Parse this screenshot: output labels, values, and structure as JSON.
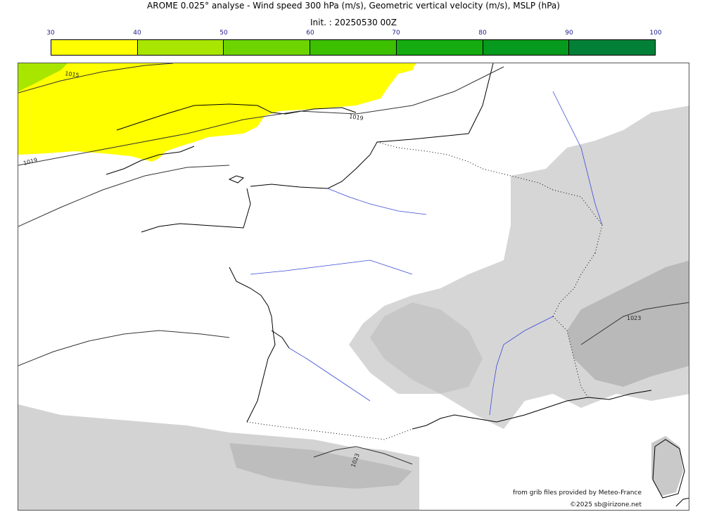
{
  "header": {
    "title": "AROME 0.025° analyse - Wind speed 300 hPa (m/s), Geometric vertical velocity (m/s), MSLP (hPa)",
    "init": "Init. : 20250530 00Z"
  },
  "colorbar": {
    "ticks": [
      "30",
      "40",
      "50",
      "60",
      "70",
      "80",
      "90",
      "100"
    ],
    "colors": [
      "#ffff00",
      "#a8e600",
      "#6dd400",
      "#3cc000",
      "#14ac10",
      "#069a1e",
      "#038038",
      "#07704a"
    ]
  },
  "map": {
    "isobar_labels": [
      "1015",
      "1019",
      "1019",
      "1023",
      "1023"
    ],
    "colors": {
      "wind_30_40": "#ffff00",
      "wind_40_50": "#a8e600",
      "terrain_shade": "#d4d4d4",
      "terrain_shade_dark": "#bdbdbd",
      "rivers": "#3a4bd8",
      "coast": "#000000"
    }
  },
  "credits": {
    "source": "from grib files provided by Meteo-France",
    "copyright": "©2025 sb@irizone.net"
  }
}
